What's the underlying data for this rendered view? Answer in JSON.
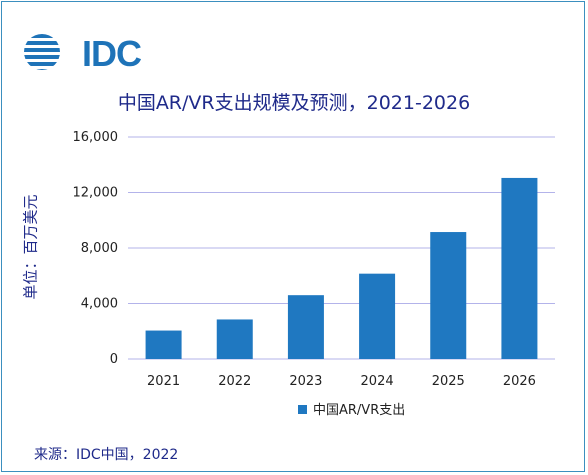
{
  "brand": {
    "logo_text": "IDC",
    "logo_color": "#1e73b8"
  },
  "source": "来源：IDC中国，2022",
  "chart_data": {
    "type": "bar",
    "title": "中国AR/VR支出规模及预测，2021-2026",
    "ylabel": "单位：百万美元",
    "xlabel": "",
    "categories": [
      "2021",
      "2022",
      "2023",
      "2024",
      "2025",
      "2026"
    ],
    "series": [
      {
        "name": "中国AR/VR支出",
        "values": [
          2050,
          2850,
          4600,
          6150,
          9150,
          13050
        ],
        "color": "#1f78c1"
      }
    ],
    "ylim": [
      0,
      16000
    ],
    "yticks": [
      0,
      4000,
      8000,
      12000,
      16000
    ],
    "ytick_labels": [
      "0",
      "4,000",
      "8,000",
      "12,000",
      "16,000"
    ],
    "grid": true,
    "grid_color": "#b3b3ea",
    "legend_position": "bottom"
  }
}
